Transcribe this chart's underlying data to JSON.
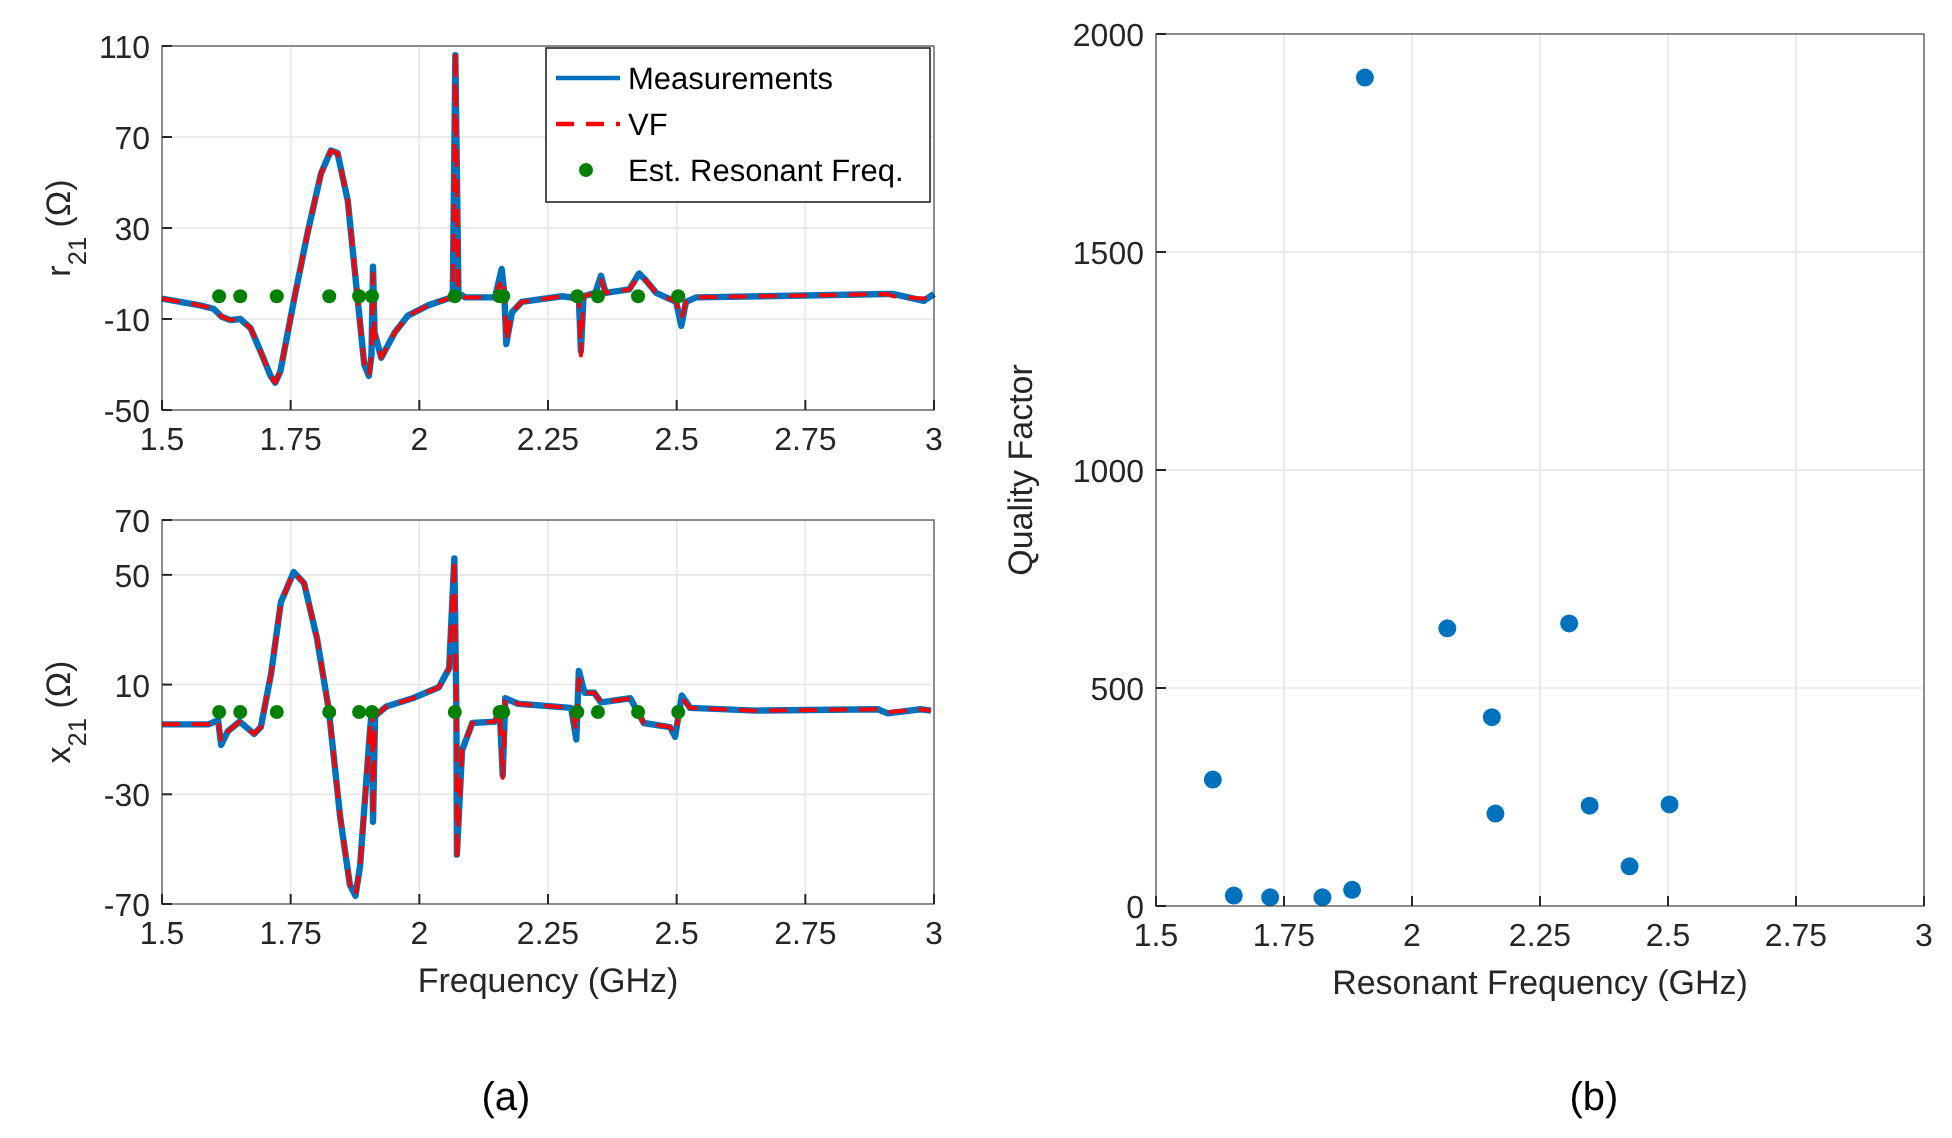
{
  "chart_data": [
    {
      "type": "line",
      "ylabel": "r$_{21}$  (Ω)",
      "xlim": [
        1.5,
        3
      ],
      "xticks": [
        1.5,
        1.75,
        2,
        2.25,
        2.5,
        2.75,
        3
      ],
      "ylim": [
        -50,
        110
      ],
      "yticks": [
        -50,
        -10,
        30,
        70,
        110
      ],
      "grid": true,
      "legend": "top right",
      "series": [
        {
          "name": "Measurements",
          "color": "#0072bd",
          "line_style": "solid",
          "x": [
            1.5,
            1.574,
            1.6,
            1.616,
            1.633,
            1.652,
            1.672,
            1.691,
            1.711,
            1.72,
            1.73,
            1.757,
            1.783,
            1.809,
            1.828,
            1.841,
            1.861,
            1.88,
            1.893,
            1.902,
            1.907,
            1.91,
            1.913,
            1.926,
            1.952,
            1.978,
            2.017,
            2.056,
            2.065,
            2.07,
            2.076,
            2.089,
            2.147,
            2.16,
            2.165,
            2.169,
            2.18,
            2.199,
            2.277,
            2.31,
            2.314,
            2.319,
            2.342,
            2.353,
            2.362,
            2.408,
            2.427,
            2.44,
            2.46,
            2.499,
            2.509,
            2.518,
            2.538,
            2.668,
            2.909,
            2.92,
            2.98,
            3
          ],
          "values": [
            -1,
            -4,
            -5.5,
            -9,
            -10.5,
            -10,
            -14,
            -24,
            -35,
            -38,
            -33,
            -1,
            28,
            54,
            64,
            63,
            42,
            -1,
            -30,
            -35,
            -26,
            13,
            -16,
            -27,
            -16,
            -8.5,
            -4,
            -1,
            0,
            106,
            1.5,
            -0.5,
            -0.5,
            12,
            1.5,
            -21,
            -7,
            -2.5,
            0,
            -1,
            -24,
            0,
            1.5,
            9,
            1.5,
            3,
            10,
            7,
            1.5,
            -2.5,
            -13,
            -2.5,
            -0.5,
            0,
            1,
            1,
            -2,
            1
          ]
        },
        {
          "name": "VF",
          "color": "#ff0000",
          "line_style": "dashed",
          "x": [
            1.5,
            1.574,
            1.6,
            1.616,
            1.633,
            1.652,
            1.672,
            1.691,
            1.711,
            1.72,
            1.73,
            1.757,
            1.783,
            1.809,
            1.828,
            1.841,
            1.861,
            1.88,
            1.893,
            1.902,
            1.907,
            1.91,
            1.913,
            1.926,
            1.952,
            1.978,
            2.017,
            2.056,
            2.065,
            2.07,
            2.076,
            2.089,
            2.147,
            2.16,
            2.165,
            2.169,
            2.18,
            2.199,
            2.277,
            2.31,
            2.314,
            2.319,
            2.342,
            2.353,
            2.362,
            2.408,
            2.427,
            2.44,
            2.46,
            2.499,
            2.509,
            2.518,
            2.538,
            2.668,
            2.909,
            2.92,
            2.98,
            3
          ],
          "values": [
            -1,
            -4,
            -5.5,
            -9,
            -10.5,
            -10,
            -14,
            -24,
            -35,
            -38,
            -33,
            -1,
            28,
            54,
            64,
            63,
            42,
            -1,
            -30,
            -35,
            -26,
            10,
            -16,
            -27,
            -16,
            -8.5,
            -4,
            -1,
            0,
            108,
            1.5,
            -0.5,
            -0.5,
            8,
            1.5,
            -20,
            -7,
            -2.5,
            0,
            -1,
            -26,
            0,
            1.5,
            7,
            1.5,
            3,
            9,
            7,
            1.5,
            -2.5,
            -10,
            -2.5,
            -0.5,
            0,
            1,
            0,
            -1,
            1
          ]
        },
        {
          "name": "Est. Resonant Freq.",
          "type": "scatter",
          "marker": "circle",
          "color": "#008000",
          "x": [
            1.611,
            1.652,
            1.723,
            1.825,
            1.883,
            1.908,
            2.069,
            2.156,
            2.163,
            2.307,
            2.347,
            2.425,
            2.503
          ],
          "values": [
            0,
            0,
            0,
            0,
            0,
            0,
            0,
            0,
            0,
            0,
            0,
            0,
            0
          ]
        }
      ]
    },
    {
      "type": "line",
      "xlabel": "Frequency (GHz)",
      "ylabel": "x$_{21}$  (Ω)",
      "xlim": [
        1.5,
        3
      ],
      "xticks": [
        1.5,
        1.75,
        2,
        2.25,
        2.5,
        2.75,
        3
      ],
      "ylim": [
        -70,
        70
      ],
      "yticks": [
        -70,
        -30,
        10,
        50,
        70
      ],
      "grid": true,
      "annotations": [
        "(a)"
      ],
      "series": [
        {
          "color": "#0072bd",
          "line_style": "solid",
          "x": [
            1.5,
            1.59,
            1.609,
            1.615,
            1.628,
            1.651,
            1.679,
            1.692,
            1.712,
            1.731,
            1.756,
            1.776,
            1.801,
            1.824,
            1.846,
            1.865,
            1.876,
            1.885,
            1.904,
            1.908,
            1.91,
            1.914,
            1.936,
            1.987,
            2.038,
            2.058,
            2.068,
            2.072,
            2.073,
            2.083,
            2.103,
            2.147,
            2.156,
            2.162,
            2.167,
            2.192,
            2.295,
            2.305,
            2.31,
            2.321,
            2.34,
            2.353,
            2.41,
            2.436,
            2.487,
            2.497,
            2.51,
            2.526,
            2.654,
            2.891,
            2.91,
            2.974,
            2.994
          ],
          "values": [
            -4.5,
            -4.5,
            -3,
            -12,
            -7,
            -3.5,
            -8,
            -5.5,
            14,
            40,
            51,
            47,
            27,
            1,
            -38,
            -63,
            -67,
            -56,
            -7,
            1,
            -40,
            -1.5,
            2,
            5,
            9,
            16,
            56,
            1,
            -52,
            -14,
            -4,
            -3.5,
            1,
            -23,
            5,
            3,
            1.5,
            -10,
            15,
            7,
            7,
            3.5,
            5,
            -4,
            -5.5,
            -9,
            6,
            1.5,
            0.5,
            1,
            -0.5,
            1,
            0.5
          ]
        },
        {
          "color": "#ff0000",
          "line_style": "dashed",
          "x": [
            1.5,
            1.59,
            1.609,
            1.615,
            1.628,
            1.651,
            1.679,
            1.692,
            1.712,
            1.731,
            1.756,
            1.776,
            1.801,
            1.824,
            1.846,
            1.865,
            1.876,
            1.885,
            1.904,
            1.908,
            1.91,
            1.914,
            1.936,
            1.987,
            2.038,
            2.058,
            2.068,
            2.072,
            2.073,
            2.083,
            2.103,
            2.147,
            2.156,
            2.162,
            2.167,
            2.192,
            2.295,
            2.305,
            2.31,
            2.321,
            2.34,
            2.353,
            2.41,
            2.436,
            2.487,
            2.497,
            2.51,
            2.526,
            2.654,
            2.891,
            2.91,
            2.974,
            2.994
          ],
          "values": [
            -4.5,
            -4.5,
            -3,
            -11,
            -7,
            -3.5,
            -8,
            -5.5,
            14,
            40,
            51,
            47,
            27,
            1,
            -38,
            -63,
            -67,
            -56,
            -7,
            1,
            -38,
            -1.5,
            2,
            5,
            9,
            16,
            56,
            1,
            -54,
            -14,
            -4,
            -3.5,
            1,
            -24,
            5,
            3,
            1.5,
            -7,
            12,
            7,
            7,
            3.5,
            5,
            -4,
            -5.5,
            -8,
            5,
            1.5,
            0.5,
            1,
            0,
            1,
            0.5
          ]
        },
        {
          "type": "scatter",
          "marker": "circle",
          "color": "#008000",
          "x": [
            1.611,
            1.652,
            1.723,
            1.825,
            1.883,
            1.908,
            2.069,
            2.156,
            2.163,
            2.307,
            2.347,
            2.425,
            2.503
          ],
          "values": [
            0,
            0,
            0,
            0,
            0,
            0,
            0,
            0,
            0,
            0,
            0,
            0,
            0
          ]
        }
      ]
    },
    {
      "type": "scatter",
      "xlabel": "Resonant Frequency (GHz)",
      "ylabel": "Quality Factor",
      "xlim": [
        1.5,
        3
      ],
      "xticks": [
        1.5,
        1.75,
        2,
        2.25,
        2.5,
        2.75,
        3
      ],
      "ylim": [
        0,
        2000
      ],
      "yticks": [
        0,
        500,
        1000,
        1500,
        2000
      ],
      "grid": true,
      "marker": "circle",
      "annotations": [
        "(b)"
      ],
      "series": [
        {
          "color": "#0072bd",
          "x": [
            1.611,
            1.652,
            1.723,
            1.825,
            1.883,
            1.908,
            2.069,
            2.156,
            2.163,
            2.307,
            2.347,
            2.425,
            2.503
          ],
          "values": [
            290,
            24,
            20,
            20,
            37,
            1900,
            637,
            433,
            212,
            648,
            230,
            91,
            233
          ]
        }
      ]
    }
  ]
}
